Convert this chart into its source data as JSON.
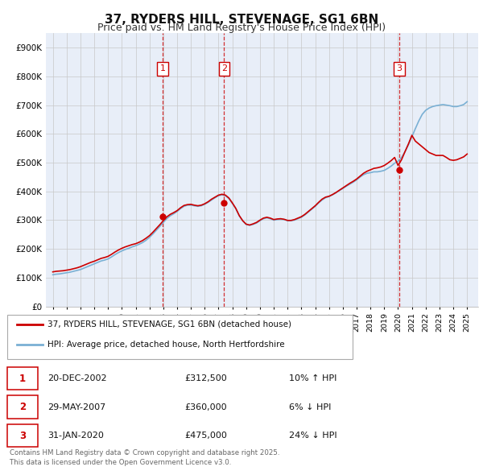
{
  "title": "37, RYDERS HILL, STEVENAGE, SG1 6BN",
  "subtitle": "Price paid vs. HM Land Registry's House Price Index (HPI)",
  "title_fontsize": 11,
  "subtitle_fontsize": 9,
  "background_color": "#ffffff",
  "plot_bg_color": "#e8eef8",
  "grid_color": "#c8c8c8",
  "ylim": [
    0,
    950000
  ],
  "yticks": [
    0,
    100000,
    200000,
    300000,
    400000,
    500000,
    600000,
    700000,
    800000,
    900000
  ],
  "ytick_labels": [
    "£0",
    "£100K",
    "£200K",
    "£300K",
    "£400K",
    "£500K",
    "£600K",
    "£700K",
    "£800K",
    "£900K"
  ],
  "xlim_start": 1994.5,
  "xlim_end": 2025.8,
  "hpi_color": "#7ab0d4",
  "price_color": "#cc0000",
  "sale_marker_color": "#cc0000",
  "vline_color": "#cc0000",
  "legend_label_price": "37, RYDERS HILL, STEVENAGE, SG1 6BN (detached house)",
  "legend_label_hpi": "HPI: Average price, detached house, North Hertfordshire",
  "sales": [
    {
      "num": 1,
      "date_dec": 2002.97,
      "price": 312500,
      "label": "1"
    },
    {
      "num": 2,
      "date_dec": 2007.41,
      "price": 360000,
      "label": "2"
    },
    {
      "num": 3,
      "date_dec": 2020.08,
      "price": 475000,
      "label": "3"
    }
  ],
  "sale_table": [
    {
      "num": "1",
      "date": "20-DEC-2002",
      "price": "£312,500",
      "note": "10% ↑ HPI"
    },
    {
      "num": "2",
      "date": "29-MAY-2007",
      "price": "£360,000",
      "note": "6% ↓ HPI"
    },
    {
      "num": "3",
      "date": "31-JAN-2020",
      "price": "£475,000",
      "note": "24% ↓ HPI"
    }
  ],
  "footer": "Contains HM Land Registry data © Crown copyright and database right 2025.\nThis data is licensed under the Open Government Licence v3.0.",
  "hpi_data_x": [
    1995.0,
    1995.25,
    1995.5,
    1995.75,
    1996.0,
    1996.25,
    1996.5,
    1996.75,
    1997.0,
    1997.25,
    1997.5,
    1997.75,
    1998.0,
    1998.25,
    1998.5,
    1998.75,
    1999.0,
    1999.25,
    1999.5,
    1999.75,
    2000.0,
    2000.25,
    2000.5,
    2000.75,
    2001.0,
    2001.25,
    2001.5,
    2001.75,
    2002.0,
    2002.25,
    2002.5,
    2002.75,
    2003.0,
    2003.25,
    2003.5,
    2003.75,
    2004.0,
    2004.25,
    2004.5,
    2004.75,
    2005.0,
    2005.25,
    2005.5,
    2005.75,
    2006.0,
    2006.25,
    2006.5,
    2006.75,
    2007.0,
    2007.25,
    2007.5,
    2007.75,
    2008.0,
    2008.25,
    2008.5,
    2008.75,
    2009.0,
    2009.25,
    2009.5,
    2009.75,
    2010.0,
    2010.25,
    2010.5,
    2010.75,
    2011.0,
    2011.25,
    2011.5,
    2011.75,
    2012.0,
    2012.25,
    2012.5,
    2012.75,
    2013.0,
    2013.25,
    2013.5,
    2013.75,
    2014.0,
    2014.25,
    2014.5,
    2014.75,
    2015.0,
    2015.25,
    2015.5,
    2015.75,
    2016.0,
    2016.25,
    2016.5,
    2016.75,
    2017.0,
    2017.25,
    2017.5,
    2017.75,
    2018.0,
    2018.25,
    2018.5,
    2018.75,
    2019.0,
    2019.25,
    2019.5,
    2019.75,
    2020.0,
    2020.25,
    2020.5,
    2020.75,
    2021.0,
    2021.25,
    2021.5,
    2021.75,
    2022.0,
    2022.25,
    2022.5,
    2022.75,
    2023.0,
    2023.25,
    2023.5,
    2023.75,
    2024.0,
    2024.25,
    2024.5,
    2024.75,
    2025.0
  ],
  "hpi_data_y": [
    110000,
    112000,
    113000,
    115000,
    117000,
    119000,
    122000,
    125000,
    128000,
    133000,
    138000,
    143000,
    148000,
    153000,
    158000,
    161000,
    165000,
    172000,
    180000,
    187000,
    193000,
    198000,
    202000,
    207000,
    211000,
    216000,
    222000,
    230000,
    240000,
    252000,
    265000,
    278000,
    292000,
    305000,
    315000,
    322000,
    330000,
    340000,
    348000,
    352000,
    352000,
    350000,
    348000,
    350000,
    355000,
    362000,
    370000,
    378000,
    385000,
    388000,
    385000,
    375000,
    358000,
    340000,
    315000,
    298000,
    285000,
    282000,
    285000,
    290000,
    298000,
    305000,
    308000,
    305000,
    300000,
    302000,
    303000,
    302000,
    298000,
    298000,
    300000,
    305000,
    310000,
    318000,
    328000,
    338000,
    348000,
    360000,
    370000,
    378000,
    382000,
    388000,
    395000,
    403000,
    410000,
    418000,
    425000,
    432000,
    440000,
    450000,
    458000,
    463000,
    465000,
    468000,
    468000,
    470000,
    473000,
    480000,
    488000,
    498000,
    505000,
    518000,
    538000,
    562000,
    590000,
    618000,
    645000,
    668000,
    682000,
    690000,
    695000,
    698000,
    700000,
    702000,
    700000,
    698000,
    695000,
    695000,
    698000,
    702000,
    712000
  ],
  "price_data_x": [
    1995.0,
    1995.25,
    1995.5,
    1995.75,
    1996.0,
    1996.25,
    1996.5,
    1996.75,
    1997.0,
    1997.25,
    1997.5,
    1997.75,
    1998.0,
    1998.25,
    1998.5,
    1998.75,
    1999.0,
    1999.25,
    1999.5,
    1999.75,
    2000.0,
    2000.25,
    2000.5,
    2000.75,
    2001.0,
    2001.25,
    2001.5,
    2001.75,
    2002.0,
    2002.25,
    2002.5,
    2002.75,
    2003.0,
    2003.25,
    2003.5,
    2003.75,
    2004.0,
    2004.25,
    2004.5,
    2004.75,
    2005.0,
    2005.25,
    2005.5,
    2005.75,
    2006.0,
    2006.25,
    2006.5,
    2006.75,
    2007.0,
    2007.25,
    2007.5,
    2007.75,
    2008.0,
    2008.25,
    2008.5,
    2008.75,
    2009.0,
    2009.25,
    2009.5,
    2009.75,
    2010.0,
    2010.25,
    2010.5,
    2010.75,
    2011.0,
    2011.25,
    2011.5,
    2011.75,
    2012.0,
    2012.25,
    2012.5,
    2012.75,
    2013.0,
    2013.25,
    2013.5,
    2013.75,
    2014.0,
    2014.25,
    2014.5,
    2014.75,
    2015.0,
    2015.25,
    2015.5,
    2015.75,
    2016.0,
    2016.25,
    2016.5,
    2016.75,
    2017.0,
    2017.25,
    2017.5,
    2017.75,
    2018.0,
    2018.25,
    2018.5,
    2018.75,
    2019.0,
    2019.25,
    2019.5,
    2019.75,
    2020.0,
    2020.25,
    2020.5,
    2020.75,
    2021.0,
    2021.25,
    2021.5,
    2021.75,
    2022.0,
    2022.25,
    2022.5,
    2022.75,
    2023.0,
    2023.25,
    2023.5,
    2023.75,
    2024.0,
    2024.25,
    2024.5,
    2024.75,
    2025.0
  ],
  "price_data_y": [
    120000,
    122000,
    123000,
    124000,
    126000,
    128000,
    131000,
    134000,
    138000,
    143000,
    148000,
    153000,
    157000,
    162000,
    167000,
    170000,
    174000,
    181000,
    189000,
    196000,
    202000,
    207000,
    211000,
    215000,
    218000,
    223000,
    229000,
    237000,
    246000,
    258000,
    271000,
    284000,
    298000,
    311000,
    320000,
    326000,
    333000,
    343000,
    351000,
    354000,
    355000,
    352000,
    350000,
    352000,
    357000,
    364000,
    373000,
    380000,
    387000,
    390000,
    387000,
    377000,
    360000,
    341000,
    316000,
    298000,
    286000,
    283000,
    287000,
    292000,
    300000,
    307000,
    310000,
    307000,
    302000,
    304000,
    305000,
    303000,
    299000,
    299000,
    302000,
    307000,
    312000,
    320000,
    330000,
    340000,
    350000,
    362000,
    373000,
    380000,
    383000,
    389000,
    396000,
    404000,
    412000,
    420000,
    428000,
    435000,
    443000,
    453000,
    463000,
    470000,
    475000,
    480000,
    482000,
    485000,
    490000,
    498000,
    507000,
    518000,
    490000,
    510000,
    538000,
    565000,
    595000,
    575000,
    565000,
    555000,
    545000,
    535000,
    530000,
    525000,
    525000,
    525000,
    518000,
    510000,
    508000,
    510000,
    515000,
    520000,
    530000
  ]
}
